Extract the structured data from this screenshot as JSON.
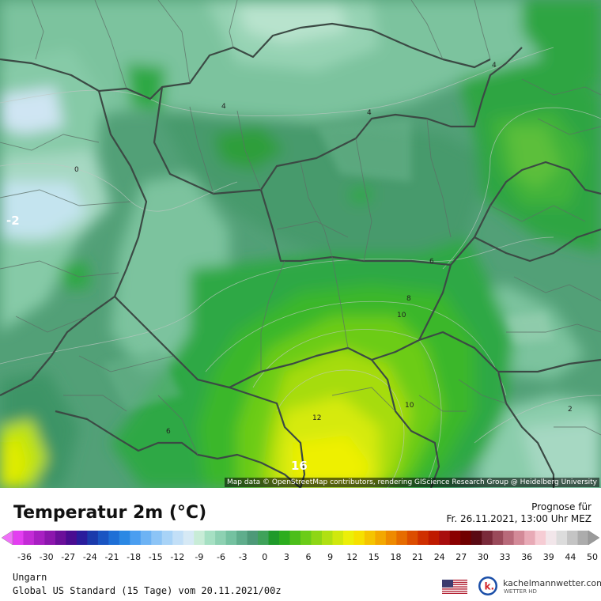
{
  "map": {
    "attribution": "Map data © OpenStreetMap contributors, rendering GIScience Research Group @ Heidelberg University",
    "contour_labels": [
      {
        "text": "0",
        "color": "#222"
      },
      {
        "text": "-2",
        "color": "#ffffff"
      },
      {
        "text": "4",
        "color": "#222"
      },
      {
        "text": "4",
        "color": "#222"
      },
      {
        "text": "4",
        "color": "#222"
      },
      {
        "text": "6",
        "color": "#222"
      },
      {
        "text": "8",
        "color": "#222"
      },
      {
        "text": "10",
        "color": "#222"
      },
      {
        "text": "12",
        "color": "#222"
      },
      {
        "text": "16",
        "color": "#ffffff"
      },
      {
        "text": "10",
        "color": "#222"
      },
      {
        "text": "6",
        "color": "#222"
      },
      {
        "text": "2",
        "color": "#222"
      }
    ]
  },
  "header": {
    "title": "Temperatur 2m (°C)",
    "forecast_label": "Prognose für",
    "forecast_date": "Fr. 26.11.2021, 13:00 Uhr MEZ"
  },
  "colorbar": {
    "ticks": [
      "-36",
      "-30",
      "-27",
      "-24",
      "-21",
      "-18",
      "-15",
      "-12",
      "-9",
      "-6",
      "-3",
      "0",
      "3",
      "6",
      "9",
      "12",
      "15",
      "18",
      "21",
      "24",
      "27",
      "30",
      "33",
      "36",
      "39",
      "44",
      "50"
    ],
    "colors": [
      "#e33ef0",
      "#c32bd6",
      "#a81fc2",
      "#8c16ad",
      "#6b0f9a",
      "#4a0c91",
      "#2a1c9c",
      "#1b3aab",
      "#1a55c2",
      "#1e6fd6",
      "#2b88e4",
      "#4b9ef0",
      "#6db3f4",
      "#8cc4f6",
      "#a8d3f7",
      "#c2dff7",
      "#d6e9f5",
      "#c8ecd7",
      "#a6e0c3",
      "#8dd1b2",
      "#74c1a0",
      "#5fad8c",
      "#4d9978",
      "#3fa25a",
      "#1f9a2a",
      "#2cad1e",
      "#4cbe1a",
      "#6bcc18",
      "#8ed615",
      "#b0e012",
      "#d0e80d",
      "#ecef08",
      "#f6e000",
      "#f5c400",
      "#f3a800",
      "#ee8a00",
      "#e66c00",
      "#dc4d00",
      "#cf2f00",
      "#bf1a00",
      "#a80d0d",
      "#8a0000",
      "#700000",
      "#5a0a14",
      "#7a2a3a",
      "#9a4a5a",
      "#b86a7a",
      "#d38a98",
      "#e8aab6",
      "#f6ccd4",
      "#f2e6ea",
      "#dcdcdc",
      "#c4c4c4",
      "#acacac"
    ],
    "left_arrow_color": "#f070f8",
    "right_arrow_color": "#9a9a9a"
  },
  "footer": {
    "region": "Ungarn",
    "model": "Global US Standard (15 Tage) vom 20.11.2021/00z",
    "brand_name": "kachelmannwetter.com",
    "brand_sub": "WETTER HD",
    "brand_color": "#d3262a"
  }
}
